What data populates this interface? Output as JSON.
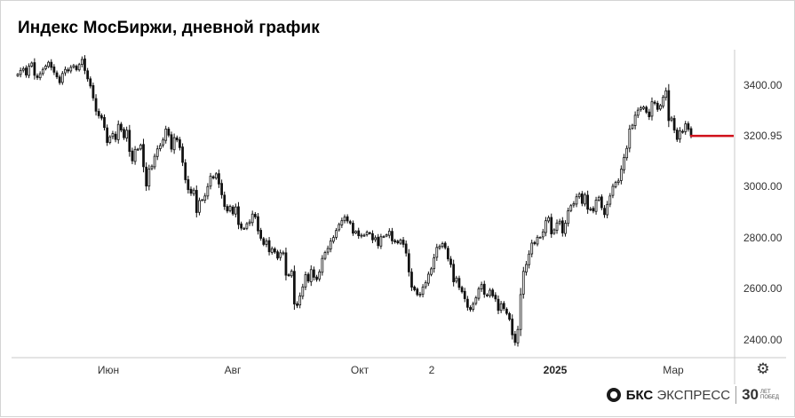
{
  "header": {
    "title": "Индекс МосБиржи, дневной график"
  },
  "branding": {
    "logo_text_bold": "БКС",
    "logo_text": "ЭКСПРЕСС",
    "anniversary_number": "30",
    "anniversary_text": "ЛЕТ ПОБЕД"
  },
  "settings": {
    "icon": "gear-icon"
  },
  "chart_data": {
    "type": "candlestick",
    "title": "Индекс МосБиржи, дневной график",
    "xlabel": "",
    "ylabel": "",
    "y_ticks": [
      "3400.00",
      "3200.00",
      "3000.00",
      "2800.00",
      "2600.00",
      "2400.00"
    ],
    "x_ticks": [
      "Июн",
      "Авг",
      "Окт",
      "2",
      "2025",
      "Мар"
    ],
    "ylim": [
      2320,
      3560
    ],
    "last_price": "3200.95",
    "last_price_color": "#d0101a",
    "grid": false,
    "series": [
      {
        "closes": [
          3443,
          3458,
          3465,
          3440,
          3475,
          3487,
          3439,
          3430,
          3445,
          3462,
          3475,
          3490,
          3470,
          3451,
          3433,
          3410,
          3446,
          3462,
          3456,
          3470,
          3477,
          3461,
          3481,
          3501,
          3458,
          3425,
          3397,
          3350,
          3298,
          3280,
          3271,
          3234,
          3175,
          3197,
          3210,
          3187,
          3246,
          3224,
          3194,
          3223,
          3140,
          3103,
          3148,
          3149,
          3165,
          3080,
          3004,
          3071,
          3082,
          3121,
          3150,
          3163,
          3185,
          3228,
          3204,
          3149,
          3194,
          3185,
          3155,
          3097,
          3029,
          2990,
          2976,
          2988,
          2900,
          2947,
          2950,
          2965,
          3002,
          3043,
          3036,
          3052,
          3012,
          2970,
          2924,
          2906,
          2924,
          2895,
          2922,
          2853,
          2839,
          2838,
          2856,
          2863,
          2894,
          2883,
          2828,
          2799,
          2775,
          2788,
          2746,
          2758,
          2745,
          2721,
          2742,
          2742,
          2654,
          2654,
          2670,
          2541,
          2535,
          2573,
          2608,
          2656,
          2631,
          2676,
          2646,
          2637,
          2667,
          2720,
          2743,
          2759,
          2788,
          2802,
          2830,
          2853,
          2868,
          2882,
          2867,
          2859,
          2819,
          2826,
          2809,
          2811,
          2811,
          2823,
          2818,
          2793,
          2801,
          2770,
          2805,
          2806,
          2813,
          2827,
          2789,
          2785,
          2781,
          2792,
          2775,
          2741,
          2667,
          2607,
          2597,
          2578,
          2579,
          2607,
          2625,
          2658,
          2679,
          2722,
          2763,
          2767,
          2778,
          2762,
          2718,
          2696,
          2628,
          2643,
          2606,
          2589,
          2562,
          2528,
          2519,
          2541,
          2565,
          2600,
          2617,
          2579,
          2575,
          2595,
          2573,
          2561,
          2516,
          2542,
          2523,
          2504,
          2481,
          2420,
          2390,
          2441,
          2578,
          2669,
          2696,
          2737,
          2780,
          2778,
          2803,
          2803,
          2824,
          2868,
          2880,
          2816,
          2832,
          2859,
          2866,
          2820,
          2858,
          2907,
          2927,
          2935,
          2962,
          2972,
          2936,
          2969,
          2913,
          2914,
          2906,
          2949,
          2960,
          2919,
          2892,
          2932,
          2965,
          3003,
          3018,
          3024,
          3070,
          3116,
          3152,
          3228,
          3243,
          3282,
          3302,
          3311,
          3314,
          3294,
          3276,
          3335,
          3329,
          3305,
          3320,
          3353,
          3378,
          3261,
          3271,
          3224,
          3187,
          3221,
          3218,
          3248,
          3227,
          3201
        ]
      }
    ]
  }
}
